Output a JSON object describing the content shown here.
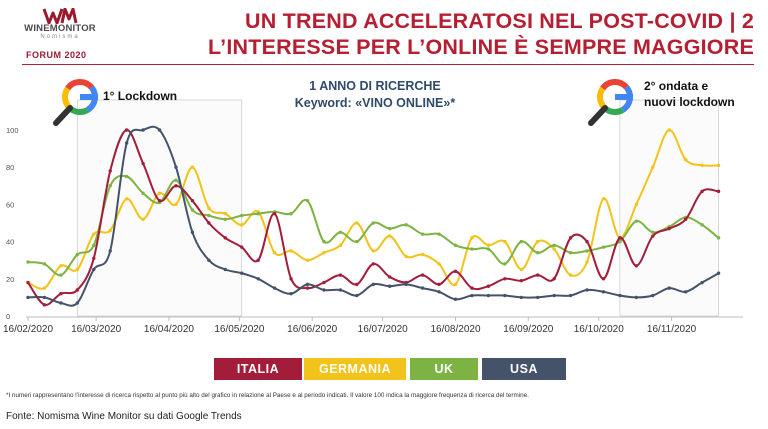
{
  "logo": {
    "name": "WINEMONITOR",
    "sub": "Nomisma",
    "forum": "FORUM 2020"
  },
  "header": {
    "title_line1": "UN TREND ACCELERATOSI NEL POST-COVID | 2",
    "title_line2": "L’INTERESSE PER L’ONLINE È SEMPRE MAGGIORE"
  },
  "subtitle": {
    "line1": "1 ANNO DI RICERCHE",
    "line2": "Keyword: «VINO ONLINE»*"
  },
  "annotations": {
    "lockdown1": "1° Lockdown",
    "lockdown2_l1": "2° ondata e",
    "lockdown2_l2": "nuovi lockdown"
  },
  "icons": {
    "search": "google-search-icon"
  },
  "colors": {
    "italia": "#a31d3a",
    "germania": "#f2c31b",
    "uk": "#7cb342",
    "usa": "#44536a",
    "title": "#b51f32"
  },
  "legend": [
    {
      "label": "ITALIA",
      "color": "#a31d3a"
    },
    {
      "label": "GERMANIA",
      "color": "#f2c31b"
    },
    {
      "label": "UK",
      "color": "#7cb342"
    },
    {
      "label": "USA",
      "color": "#44536a"
    }
  ],
  "footnote": "*I numeri rappresentano l’interesse di ricerca rispetto al punto più alto del grafico in relazione al Paese e al periodo indicati. Il valore 100 indica la maggiore frequenza di ricerca del termine.",
  "source": "Fonte: Nomisma Wine Monitor su dati Google Trends",
  "chart_data": {
    "type": "line",
    "x": [
      "16/02/2020",
      "23/02/2020",
      "01/03/2020",
      "08/03/2020",
      "15/03/2020",
      "22/03/2020",
      "29/03/2020",
      "05/04/2020",
      "12/04/2020",
      "19/04/2020",
      "26/04/2020",
      "03/05/2020",
      "10/05/2020",
      "17/05/2020",
      "24/05/2020",
      "31/05/2020",
      "07/06/2020",
      "14/06/2020",
      "21/06/2020",
      "28/06/2020",
      "05/07/2020",
      "12/07/2020",
      "19/07/2020",
      "26/07/2020",
      "02/08/2020",
      "09/08/2020",
      "16/08/2020",
      "23/08/2020",
      "30/08/2020",
      "06/09/2020",
      "13/09/2020",
      "20/09/2020",
      "27/09/2020",
      "04/10/2020",
      "11/10/2020",
      "18/10/2020",
      "25/10/2020",
      "01/11/2020",
      "08/11/2020",
      "15/11/2020",
      "22/11/2020",
      "29/11/2020",
      "06/12/2020"
    ],
    "x_ticks": [
      "16/02/2020",
      "16/03/2020",
      "16/04/2020",
      "16/05/2020",
      "16/06/2020",
      "16/07/2020",
      "16/08/2020",
      "16/09/2020",
      "16/10/2020",
      "16/11/2020"
    ],
    "ylim": [
      0,
      100
    ],
    "y_ticks": [
      0,
      20,
      40,
      60,
      80,
      100
    ],
    "shaded_periods": [
      [
        "08/03/2020",
        "17/05/2020"
      ],
      [
        "25/10/2020",
        "06/12/2020"
      ]
    ],
    "series": [
      {
        "name": "ITALIA",
        "values": [
          18,
          6,
          12,
          14,
          31,
          78,
          100,
          82,
          62,
          70,
          62,
          50,
          42,
          37,
          30,
          55,
          20,
          15,
          18,
          22,
          17,
          28,
          21,
          18,
          22,
          17,
          24,
          15,
          16,
          20,
          19,
          22,
          20,
          42,
          40,
          20,
          42,
          27,
          43,
          47,
          52,
          67,
          67
        ]
      },
      {
        "name": "GERMANIA",
        "values": [
          18,
          15,
          27,
          25,
          44,
          46,
          63,
          52,
          66,
          60,
          80,
          58,
          55,
          49,
          56,
          34,
          35,
          30,
          34,
          38,
          50,
          35,
          43,
          32,
          33,
          28,
          17,
          42,
          38,
          40,
          25,
          40,
          36,
          22,
          29,
          63,
          42,
          60,
          80,
          100,
          84,
          81,
          81
        ]
      },
      {
        "name": "UK",
        "values": [
          29,
          28,
          22,
          33,
          38,
          70,
          75,
          66,
          61,
          73,
          57,
          54,
          52,
          54,
          55,
          56,
          55,
          62,
          40,
          45,
          40,
          50,
          47,
          49,
          44,
          44,
          38,
          36,
          36,
          28,
          40,
          34,
          38,
          34,
          35,
          37,
          40,
          51,
          45,
          48,
          53,
          49,
          42
        ]
      },
      {
        "name": "USA",
        "values": [
          10,
          10,
          7,
          7,
          25,
          35,
          93,
          100,
          100,
          80,
          45,
          30,
          25,
          23,
          20,
          15,
          12,
          17,
          14,
          14,
          11,
          17,
          16,
          17,
          15,
          13,
          9,
          11,
          11,
          11,
          10,
          10,
          11,
          11,
          14,
          13,
          11,
          10,
          11,
          15,
          13,
          18,
          23
        ]
      }
    ]
  }
}
